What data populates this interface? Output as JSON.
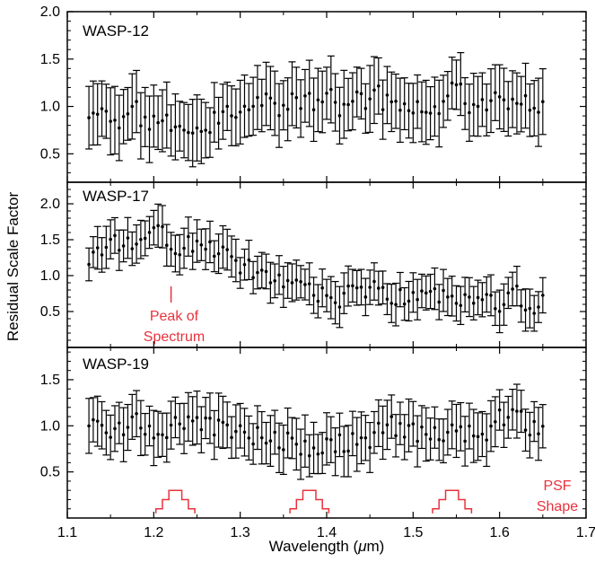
{
  "chart_data": {
    "type": "scatter",
    "xlabel": "Wavelength (μm)",
    "ylabel": "Residual Scale Factor",
    "xlim": [
      1.1,
      1.7
    ],
    "x_ticks": [
      "1.1",
      "1.2",
      "1.3",
      "1.4",
      "1.5",
      "1.6",
      "1.7"
    ],
    "x_tick_values": [
      1.1,
      1.2,
      1.3,
      1.4,
      1.5,
      1.6,
      1.7
    ],
    "wavelength_range": [
      1.125,
      1.65
    ],
    "wavelength_step": 0.005,
    "errorbar_color": "#000000",
    "annotation_color": "#e8323c",
    "panels": [
      {
        "name": "WASP-12",
        "ylim": [
          0.2,
          2.0
        ],
        "y_ticks": [
          "0.5",
          "1.0",
          "1.5",
          "2.0"
        ],
        "y_tick_values": [
          0.5,
          1.0,
          1.5,
          2.0
        ],
        "trend_knots": [
          [
            1.125,
            0.85
          ],
          [
            1.25,
            0.85
          ],
          [
            1.35,
            1.0
          ],
          [
            1.45,
            1.05
          ],
          [
            1.55,
            1.1
          ],
          [
            1.65,
            1.1
          ]
        ],
        "scatter_amp": 0.2,
        "error_halfwidth": 0.3,
        "seed": 3
      },
      {
        "name": "WASP-17",
        "ylim": [
          0.0,
          2.3
        ],
        "y_ticks": [
          "0.5",
          "1.0",
          "1.5",
          "2.0"
        ],
        "y_tick_values": [
          0.5,
          1.0,
          1.5,
          2.0
        ],
        "trend_knots": [
          [
            1.125,
            1.25
          ],
          [
            1.2,
            1.5
          ],
          [
            1.25,
            1.45
          ],
          [
            1.3,
            1.1
          ],
          [
            1.35,
            0.9
          ],
          [
            1.4,
            0.75
          ],
          [
            1.5,
            0.72
          ],
          [
            1.6,
            0.65
          ],
          [
            1.65,
            0.65
          ]
        ],
        "scatter_amp": 0.2,
        "error_halfwidth": 0.25,
        "seed": 11,
        "annotation": {
          "text_line1": "Peak of",
          "text_line2": "Spectrum",
          "x": 1.22
        }
      },
      {
        "name": "WASP-19",
        "ylim": [
          0.0,
          1.85
        ],
        "y_ticks": [
          "0.5",
          "1.0",
          "1.5"
        ],
        "y_tick_values": [
          0.5,
          1.0,
          1.5
        ],
        "trend_knots": [
          [
            1.1,
            1.0
          ],
          [
            1.15,
            1.0
          ],
          [
            1.3,
            1.0
          ],
          [
            1.35,
            0.85
          ],
          [
            1.38,
            0.72
          ],
          [
            1.42,
            0.8
          ],
          [
            1.48,
            0.95
          ],
          [
            1.53,
            0.85
          ],
          [
            1.56,
            0.9
          ],
          [
            1.6,
            1.05
          ],
          [
            1.65,
            1.0
          ]
        ],
        "scatter_amp": 0.18,
        "error_halfwidth": 0.25,
        "seed": 29,
        "psf_label_line1": "PSF",
        "psf_label_line2": "Shape",
        "psf_centers": [
          1.225,
          1.38,
          1.545
        ],
        "psf_width": 0.045,
        "psf_heights": [
          0.05,
          0.15,
          0.25
        ]
      }
    ]
  }
}
